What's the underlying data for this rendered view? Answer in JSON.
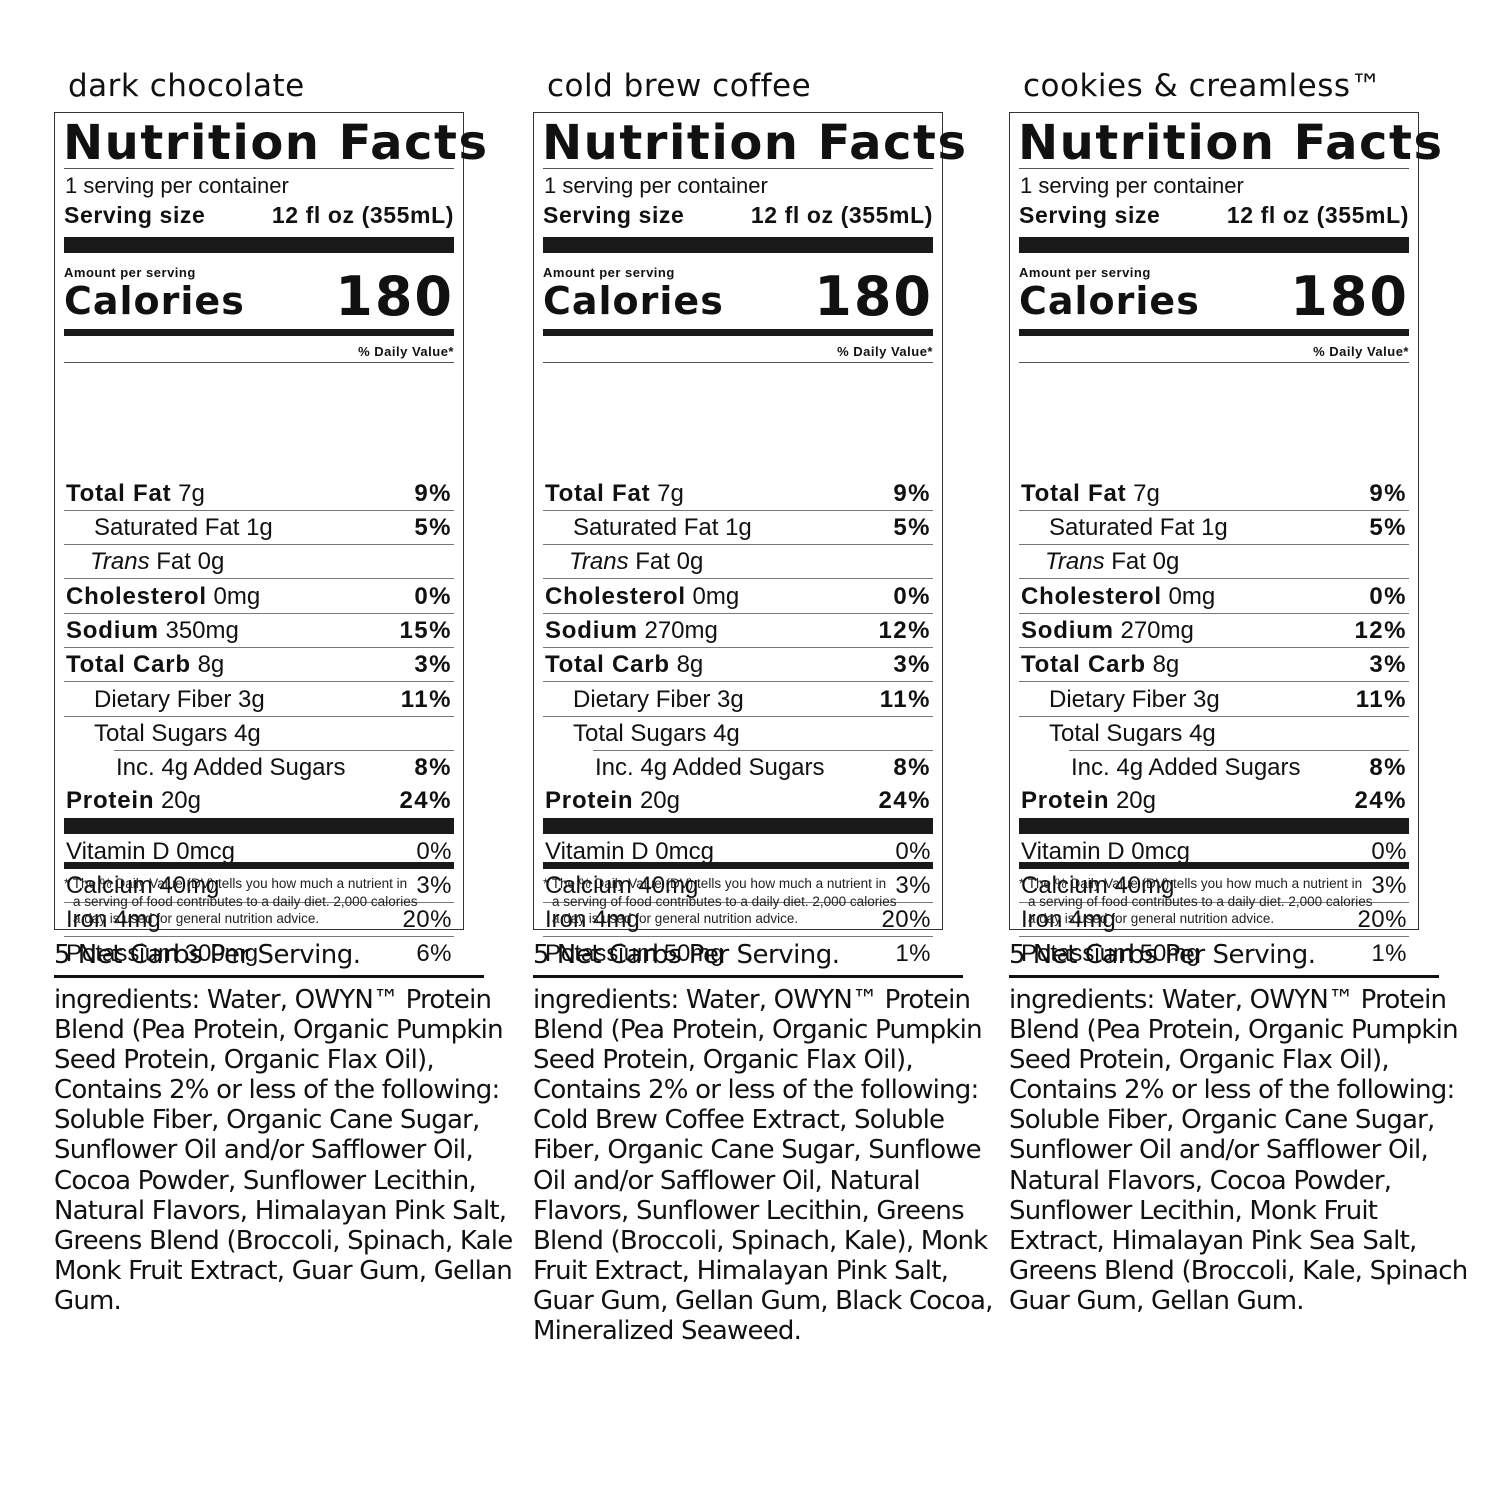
{
  "labels": [
    {
      "flavor": "dark chocolate",
      "title": "Nutrition Facts",
      "servings": "1 serving per container",
      "serving_size_label": "Serving size",
      "serving_size_value": "12 fl oz (355mL)",
      "amount_per_serving": "Amount per serving",
      "calories_label": "Calories",
      "calories_value": "180",
      "dv_header": "% Daily Value*",
      "rows": [
        {
          "bold": "Total Fat",
          "ital": "",
          "rest": " 7g",
          "pct": "9%"
        },
        {
          "bold": "",
          "ital": "",
          "rest": "Saturated Fat 1g",
          "pct": "5%"
        },
        {
          "bold": "",
          "ital": "Trans",
          "rest": " Fat 0g",
          "pct": ""
        },
        {
          "bold": "Cholesterol",
          "ital": "",
          "rest": " 0mg",
          "pct": "0%"
        },
        {
          "bold": "Sodium",
          "ital": "",
          "rest": " 350mg",
          "pct": "15%"
        },
        {
          "bold": "Total Carb",
          "ital": "",
          "rest": " 8g",
          "pct": "3%"
        },
        {
          "bold": "",
          "ital": "",
          "rest": "Dietary Fiber 3g",
          "pct": "11%"
        },
        {
          "bold": "",
          "ital": "",
          "rest": "Total Sugars 4g",
          "pct": ""
        },
        {
          "bold": "",
          "ital": "",
          "rest": "Inc. 4g Added Sugars",
          "pct": "8%"
        },
        {
          "bold": "Protein",
          "ital": "",
          "rest": " 20g",
          "pct": "24%"
        }
      ],
      "vitamins": [
        {
          "label": "Vitamin D 0mcg",
          "pct": "0%"
        },
        {
          "label": "Calcium 40mg",
          "pct": "3%"
        },
        {
          "label": "Iron 4mg",
          "pct": "20%"
        },
        {
          "label": "Potassium 300mg",
          "pct": "6%"
        }
      ],
      "footnote": [
        "* The % Daily Value (DV) tells you how much a nutrient in",
        "a serving of food contributes to a daily diet. 2,000 calories",
        "a day is used for general nutrition advice."
      ],
      "net_carbs": "5 Net Carbs Per Serving.",
      "ingredients_lines": [
        "ingredients: Water, OWYN™ Protein",
        "Blend (Pea Protein, Organic Pumpkin",
        "Seed Protein, Organic Flax Oil),",
        "Contains 2% or less of the following:",
        "Soluble Fiber, Organic Cane Sugar,",
        "Sunflower Oil and/or Safflower Oil,",
        "Cocoa Powder, Sunflower Lecithin,",
        "Natural Flavors, Himalayan Pink Salt,",
        "Greens Blend (Broccoli, Spinach, Kale),",
        "Monk Fruit Extract, Guar Gum, Gellan",
        "Gum."
      ]
    },
    {
      "flavor": "cold brew coffee",
      "title": "Nutrition Facts",
      "servings": "1 serving per container",
      "serving_size_label": "Serving size",
      "serving_size_value": "12 fl oz (355mL)",
      "amount_per_serving": "Amount per serving",
      "calories_label": "Calories",
      "calories_value": "180",
      "dv_header": "% Daily Value*",
      "rows": [
        {
          "bold": "Total Fat",
          "ital": "",
          "rest": " 7g",
          "pct": "9%"
        },
        {
          "bold": "",
          "ital": "",
          "rest": "Saturated Fat 1g",
          "pct": "5%"
        },
        {
          "bold": "",
          "ital": "Trans",
          "rest": " Fat 0g",
          "pct": ""
        },
        {
          "bold": "Cholesterol",
          "ital": "",
          "rest": " 0mg",
          "pct": "0%"
        },
        {
          "bold": "Sodium",
          "ital": "",
          "rest": " 270mg",
          "pct": "12%"
        },
        {
          "bold": "Total Carb",
          "ital": "",
          "rest": " 8g",
          "pct": "3%"
        },
        {
          "bold": "",
          "ital": "",
          "rest": "Dietary Fiber 3g",
          "pct": "11%"
        },
        {
          "bold": "",
          "ital": "",
          "rest": "Total Sugars 4g",
          "pct": ""
        },
        {
          "bold": "",
          "ital": "",
          "rest": "Inc. 4g Added Sugars",
          "pct": "8%"
        },
        {
          "bold": "Protein",
          "ital": "",
          "rest": " 20g",
          "pct": "24%"
        }
      ],
      "vitamins": [
        {
          "label": "Vitamin D 0mcg",
          "pct": "0%"
        },
        {
          "label": "Calcium 40mg",
          "pct": "3%"
        },
        {
          "label": "Iron 4mg",
          "pct": "20%"
        },
        {
          "label": "Potassium 50mg",
          "pct": "1%"
        }
      ],
      "footnote": [
        "* The % Daily Value (DV) tells you how much a nutrient in",
        "a serving of food contributes to a daily diet. 2,000 calories",
        "a day is used for general nutrition advice."
      ],
      "net_carbs": "5 Net Carbs Per Serving.",
      "ingredients_lines": [
        "ingredients: Water, OWYN™ Protein",
        "Blend (Pea Protein, Organic Pumpkin",
        "Seed Protein, Organic Flax Oil),",
        "Contains 2% or less of the following:",
        "Cold Brew Coffee Extract, Soluble",
        "Fiber, Organic Cane Sugar, Sunflowe",
        "Oil and/or Safflower Oil, Natural",
        "Flavors, Sunflower Lecithin, Greens",
        "Blend (Broccoli, Spinach, Kale), Monk",
        "Fruit Extract, Himalayan Pink Salt,",
        "Guar Gum, Gellan Gum, Black Cocoa,",
        "Mineralized Seaweed."
      ]
    },
    {
      "flavor": "cookies & creamless™",
      "title": "Nutrition Facts",
      "servings": "1 serving per container",
      "serving_size_label": "Serving size",
      "serving_size_value": "12 fl oz (355mL)",
      "amount_per_serving": "Amount per serving",
      "calories_label": "Calories",
      "calories_value": "180",
      "dv_header": "% Daily Value*",
      "rows": [
        {
          "bold": "Total Fat",
          "ital": "",
          "rest": " 7g",
          "pct": "9%"
        },
        {
          "bold": "",
          "ital": "",
          "rest": "Saturated Fat 1g",
          "pct": "5%"
        },
        {
          "bold": "",
          "ital": "Trans",
          "rest": " Fat 0g",
          "pct": ""
        },
        {
          "bold": "Cholesterol",
          "ital": "",
          "rest": " 0mg",
          "pct": "0%"
        },
        {
          "bold": "Sodium",
          "ital": "",
          "rest": " 270mg",
          "pct": "12%"
        },
        {
          "bold": "Total Carb",
          "ital": "",
          "rest": " 8g",
          "pct": "3%"
        },
        {
          "bold": "",
          "ital": "",
          "rest": "Dietary Fiber 3g",
          "pct": "11%"
        },
        {
          "bold": "",
          "ital": "",
          "rest": "Total Sugars 4g",
          "pct": ""
        },
        {
          "bold": "",
          "ital": "",
          "rest": "Inc. 4g Added Sugars",
          "pct": "8%"
        },
        {
          "bold": "Protein",
          "ital": "",
          "rest": " 20g",
          "pct": "24%"
        }
      ],
      "vitamins": [
        {
          "label": "Vitamin D 0mcg",
          "pct": "0%"
        },
        {
          "label": "Calcium 40mg",
          "pct": "3%"
        },
        {
          "label": "Iron 4mg",
          "pct": "20%"
        },
        {
          "label": "Potassium 50mg",
          "pct": "1%"
        }
      ],
      "footnote": [
        "* The % Daily Value (DV) tells you how much a nutrient in",
        "a serving of food contributes to a daily diet. 2,000 calories",
        "a day is used for general nutrition advice."
      ],
      "net_carbs": "5 Net Carbs Per Serving.",
      "ingredients_lines": [
        "ingredients: Water, OWYN™ Protein",
        "Blend (Pea Protein, Organic Pumpkin",
        "Seed Protein, Organic Flax Oil),",
        "Contains 2% or less of the following:",
        "Soluble Fiber, Organic Cane Sugar,",
        "Sunflower Oil and/or Safflower Oil,",
        "Natural Flavors, Cocoa Powder,",
        "Sunflower Lecithin, Monk Fruit",
        "Extract, Himalayan Pink Sea Salt,",
        "Greens Blend (Broccoli, Kale, Spinach),",
        "Guar Gum, Gellan Gum."
      ]
    }
  ]
}
